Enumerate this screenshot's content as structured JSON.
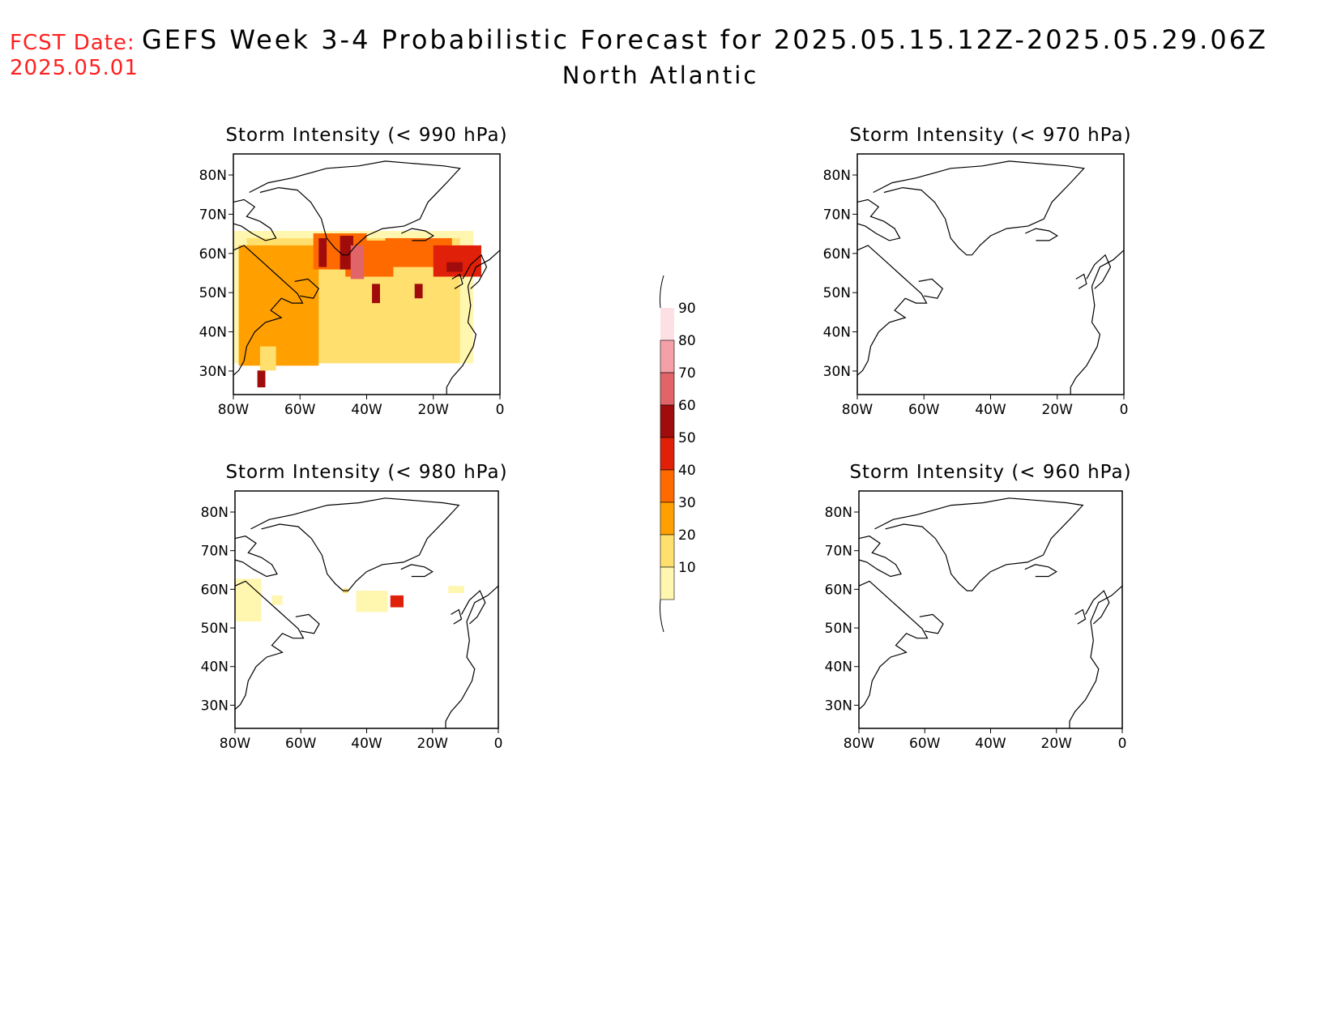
{
  "header": {
    "fcst_label": "FCST Date:",
    "fcst_date": "2025.05.01",
    "title": "GEFS Week 3-4 Probabilistic Forecast for 2025.05.15.12Z-2025.05.29.06Z",
    "subtitle": "North Atlantic"
  },
  "panels": [
    {
      "title": "Storm Intensity (< 990 hPa)"
    },
    {
      "title": "Storm Intensity (< 970 hPa)"
    },
    {
      "title": "Storm Intensity (< 980 hPa)"
    },
    {
      "title": "Storm Intensity (< 960 hPa)"
    }
  ],
  "axes": {
    "lat_labels": [
      "80N",
      "70N",
      "60N",
      "50N",
      "40N",
      "30N"
    ],
    "lon_labels": [
      "80W",
      "60W",
      "40W",
      "20W",
      "0"
    ]
  },
  "colorbar": {
    "labels": [
      "90",
      "80",
      "70",
      "60",
      "50",
      "40",
      "30",
      "20",
      "10"
    ],
    "colors": [
      "#fde0e4",
      "#f4a0a6",
      "#e06468",
      "#a00c0c",
      "#e02008",
      "#ff6a00",
      "#ffa000",
      "#ffe06e",
      "#fff6b0"
    ]
  }
}
